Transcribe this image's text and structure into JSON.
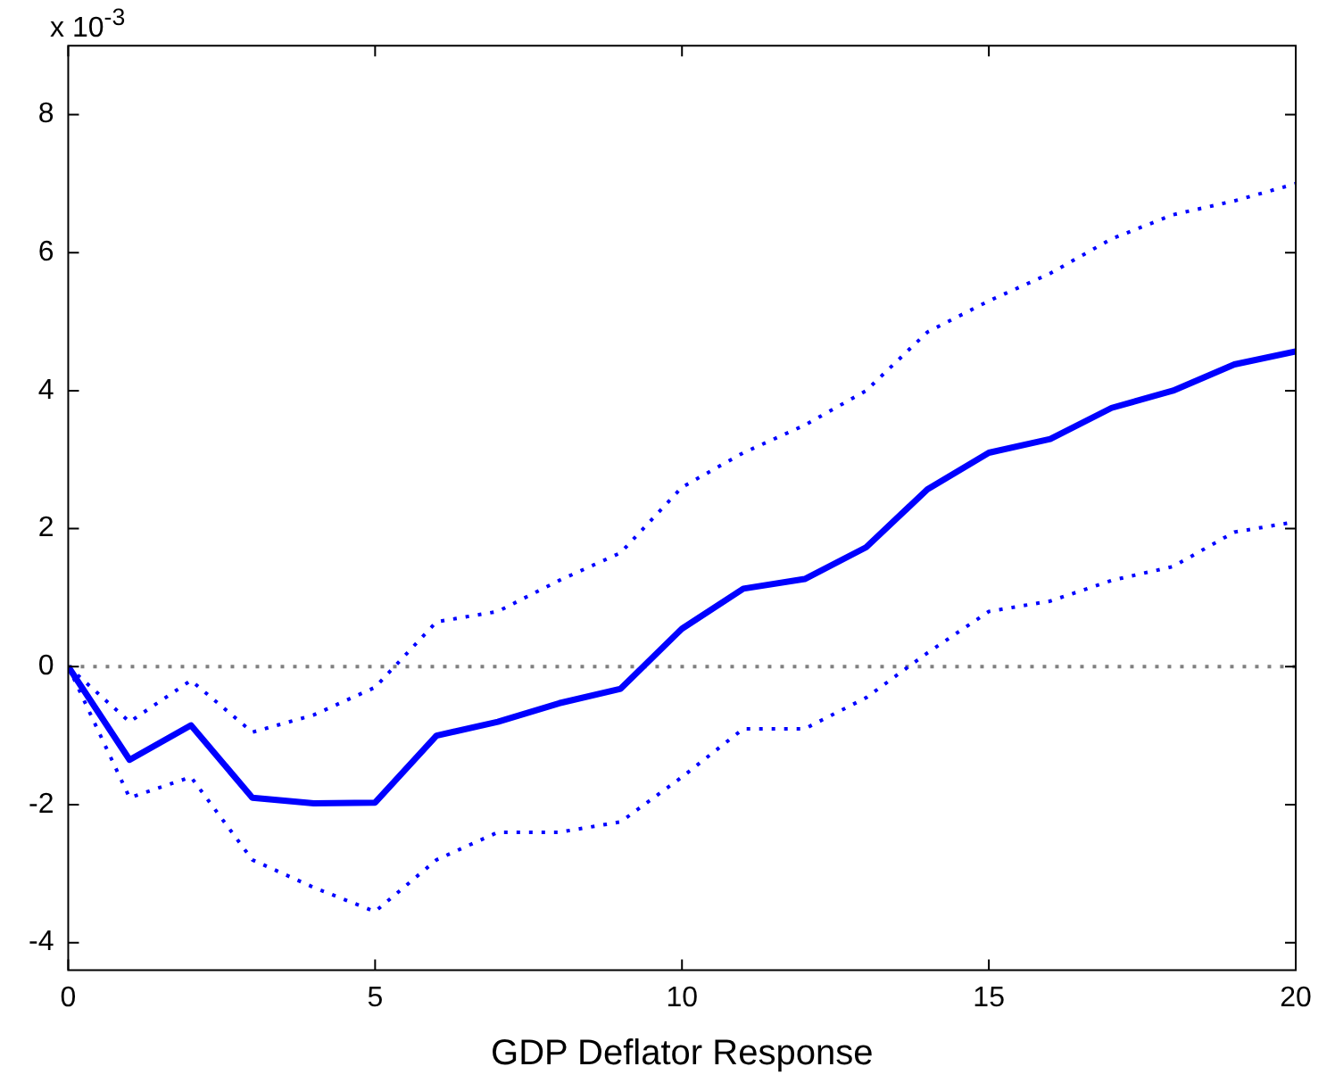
{
  "chart_data": {
    "type": "line",
    "xlabel": "GDP Deflator Response",
    "annotations": [
      "x 10$^{-3}$"
    ],
    "x": [
      0,
      1,
      2,
      3,
      4,
      5,
      6,
      7,
      8,
      9,
      10,
      11,
      12,
      13,
      14,
      15,
      16,
      17,
      18,
      19,
      20
    ],
    "series": [
      {
        "color": "#0000ff",
        "line_style": "solid",
        "values": [
          0,
          -1.35,
          -0.85,
          -1.9,
          -1.98,
          -1.97,
          -1.0,
          -0.8,
          -0.53,
          -0.32,
          0.55,
          1.13,
          1.27,
          1.73,
          2.57,
          3.1,
          3.3,
          3.75,
          4.0,
          4.38,
          4.57
        ]
      },
      {
        "color": "#0000ff",
        "line_style": "dotted",
        "values": [
          0,
          -0.8,
          -0.2,
          -0.95,
          -0.7,
          -0.3,
          0.65,
          0.8,
          1.25,
          1.65,
          2.6,
          3.1,
          3.5,
          4.0,
          4.85,
          5.3,
          5.7,
          6.2,
          6.55,
          6.75,
          7.0
        ]
      },
      {
        "color": "#0000ff",
        "line_style": "dotted",
        "values": [
          0,
          -1.9,
          -1.6,
          -2.8,
          -3.2,
          -3.55,
          -2.8,
          -2.4,
          -2.4,
          -2.25,
          -1.6,
          -0.9,
          -0.9,
          -0.45,
          0.2,
          0.8,
          0.95,
          1.25,
          1.45,
          1.95,
          2.1
        ]
      }
    ],
    "ref_lines": [
      {
        "axis": "y",
        "value": 0,
        "color": "#808080",
        "line_style": "dotted"
      }
    ],
    "xlim": [
      0,
      20
    ],
    "xticks": [
      0,
      5,
      10,
      15,
      20
    ],
    "ylim": [
      -4.4,
      9
    ],
    "yticks": [
      -4,
      -2,
      0,
      2,
      4,
      6,
      8
    ],
    "grid": false,
    "legend": false,
    "marker": "none"
  }
}
